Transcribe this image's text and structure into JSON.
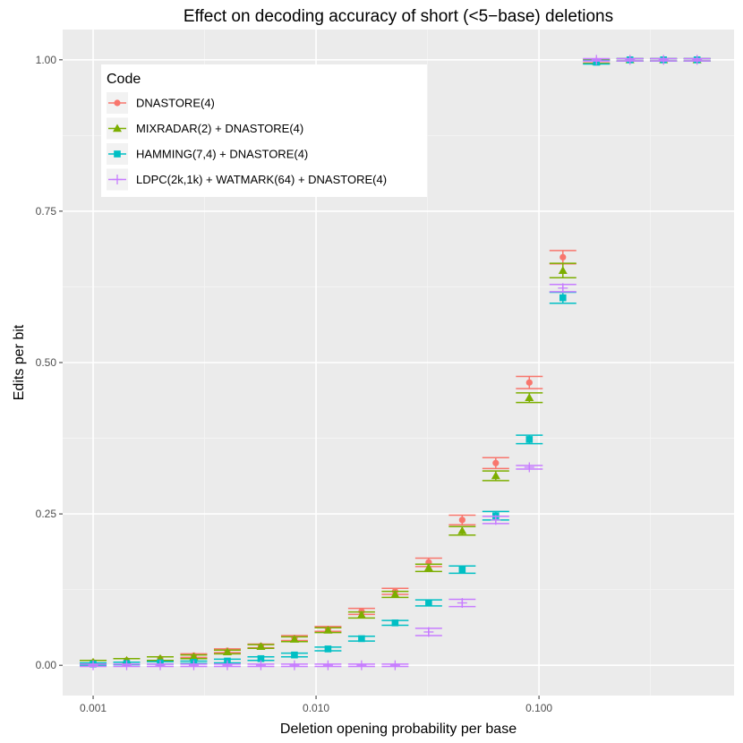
{
  "chart_data": {
    "type": "scatter",
    "title": "Effect on decoding accuracy of short (<5−base) deletions",
    "xlabel": "Deletion opening probability per base",
    "ylabel": "Edits per bit",
    "xscale": "log10",
    "xlim": [
      0.00073,
      0.75
    ],
    "ylim": [
      -0.05,
      1.05
    ],
    "x_ticks": [
      0.001,
      0.01,
      0.1
    ],
    "x_tick_labels": [
      "0.001",
      "0.010",
      "0.100"
    ],
    "y_ticks": [
      0,
      0.25,
      0.5,
      0.75,
      1.0
    ],
    "y_tick_labels": [
      "0.00",
      "0.25",
      "0.50",
      "0.75",
      "1.00"
    ],
    "grid": true,
    "legend": {
      "title": "Code",
      "position": "top-left"
    },
    "x": [
      0.001,
      0.001414,
      0.002,
      0.002828,
      0.004,
      0.005657,
      0.008,
      0.011314,
      0.016,
      0.022627,
      0.032,
      0.045255,
      0.064,
      0.09051,
      0.128,
      0.181019,
      0.256,
      0.362039,
      0.512
    ],
    "series": [
      {
        "name": "DNASTORE(4)",
        "color": "#F8766D",
        "marker": "circle",
        "values": [
          0.005,
          0.008,
          0.011,
          0.016,
          0.024,
          0.032,
          0.045,
          0.06,
          0.089,
          0.122,
          0.17,
          0.24,
          0.334,
          0.467,
          0.674,
          0.998,
          1.0,
          1.0,
          1.0
        ],
        "err": [
          0.003,
          0.003,
          0.003,
          0.003,
          0.003,
          0.003,
          0.004,
          0.004,
          0.005,
          0.005,
          0.007,
          0.008,
          0.009,
          0.01,
          0.011,
          0.003,
          0.002,
          0.002,
          0.002
        ]
      },
      {
        "name": "MIXRADAR(2) + DNASTORE(4)",
        "color": "#7CAE00",
        "marker": "triangle",
        "values": [
          0.005,
          0.008,
          0.011,
          0.014,
          0.022,
          0.031,
          0.043,
          0.058,
          0.083,
          0.117,
          0.161,
          0.222,
          0.313,
          0.442,
          0.652,
          0.997,
          1.0,
          1.0,
          1.0
        ],
        "err": [
          0.003,
          0.003,
          0.003,
          0.003,
          0.003,
          0.003,
          0.004,
          0.004,
          0.005,
          0.005,
          0.006,
          0.007,
          0.008,
          0.008,
          0.012,
          0.003,
          0.002,
          0.002,
          0.002
        ]
      },
      {
        "name": "HAMMING(7,4) + DNASTORE(4)",
        "color": "#00BFC4",
        "marker": "square",
        "values": [
          0.002,
          0.003,
          0.004,
          0.005,
          0.007,
          0.011,
          0.017,
          0.027,
          0.044,
          0.07,
          0.103,
          0.158,
          0.247,
          0.373,
          0.607,
          0.996,
          1.0,
          1.0,
          1.0
        ],
        "err": [
          0.002,
          0.002,
          0.002,
          0.002,
          0.003,
          0.003,
          0.003,
          0.003,
          0.004,
          0.004,
          0.005,
          0.006,
          0.007,
          0.007,
          0.009,
          0.003,
          0.002,
          0.002,
          0.002
        ]
      },
      {
        "name": "LDPC(2k,1k) + WATMARK(64) + DNASTORE(4)",
        "color": "#C77CFF",
        "marker": "plus",
        "values": [
          0.0,
          0.0,
          0.0,
          0.0,
          0.0,
          0.0,
          0.0,
          0.0,
          0.0,
          0.0,
          0.055,
          0.103,
          0.24,
          0.327,
          0.623,
          1.0,
          1.0,
          1.0,
          1.0
        ],
        "err": [
          0.002,
          0.002,
          0.002,
          0.002,
          0.002,
          0.002,
          0.002,
          0.002,
          0.002,
          0.002,
          0.006,
          0.006,
          0.006,
          0.003,
          0.006,
          0.002,
          0.002,
          0.002,
          0.002
        ]
      }
    ]
  }
}
